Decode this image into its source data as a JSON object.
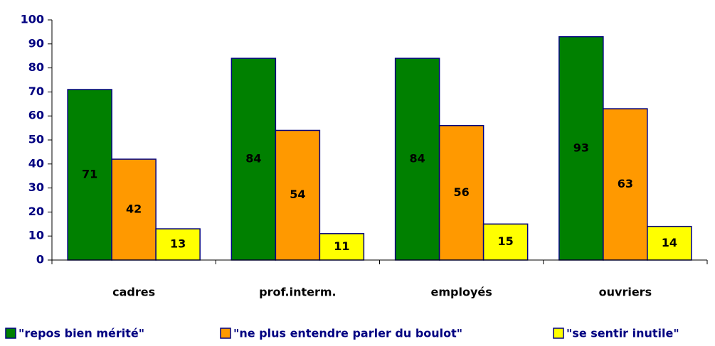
{
  "chart_data": {
    "type": "bar",
    "categories": [
      "cadres",
      "prof.interm.",
      "employés",
      "ouvriers"
    ],
    "series": [
      {
        "name": "\"repos bien mérité\"",
        "color": "#008000",
        "values": [
          71,
          84,
          84,
          93
        ]
      },
      {
        "name": "\"ne plus entendre parler du boulot\"",
        "color": "#ff9900",
        "values": [
          42,
          54,
          56,
          63
        ]
      },
      {
        "name": "\"se sentir inutile\"",
        "color": "#ffff00",
        "values": [
          13,
          11,
          15,
          14
        ]
      }
    ],
    "ylim": [
      0,
      100
    ],
    "yticks": [
      0,
      10,
      20,
      30,
      40,
      50,
      60,
      70,
      80,
      90,
      100
    ],
    "grid": false,
    "legend": "bottom"
  }
}
